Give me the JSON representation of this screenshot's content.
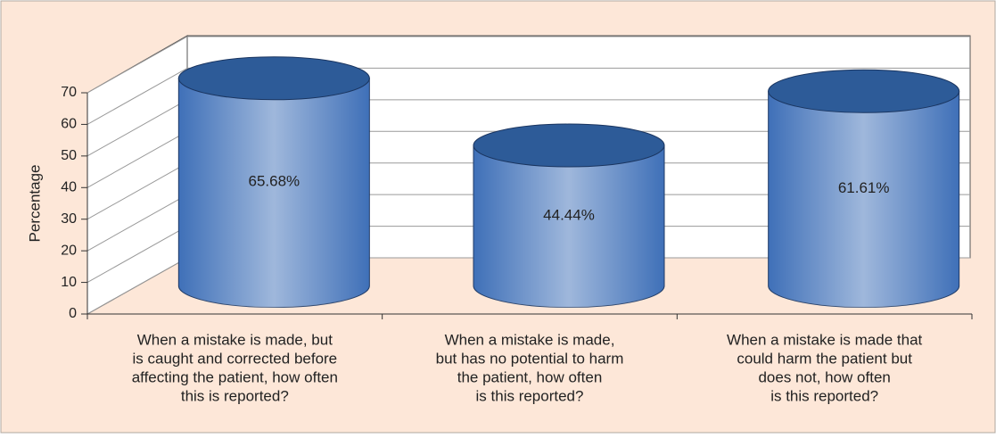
{
  "chart_data": {
    "type": "cylinder",
    "y_label": "Percentage",
    "categories": [
      [
        "When a mistake is made, but",
        "is caught and corrected before",
        "affecting the patient, how often",
        "this is reported?"
      ],
      [
        "When a mistake is made,",
        "but has no potential to harm",
        "the patient, how often",
        "is this reported?"
      ],
      [
        "When a mistake is made that",
        "could harm the patient but",
        "does not, how often",
        "is this reported?"
      ]
    ],
    "values": [
      65.68,
      44.44,
      61.61
    ],
    "value_labels": [
      "65.68%",
      "44.44%",
      "61.61%"
    ],
    "color": "#3f70b8",
    "ylim": [
      0,
      70
    ],
    "yticks": [
      0,
      10,
      20,
      30,
      40,
      50,
      60,
      70
    ],
    "grid": true
  }
}
